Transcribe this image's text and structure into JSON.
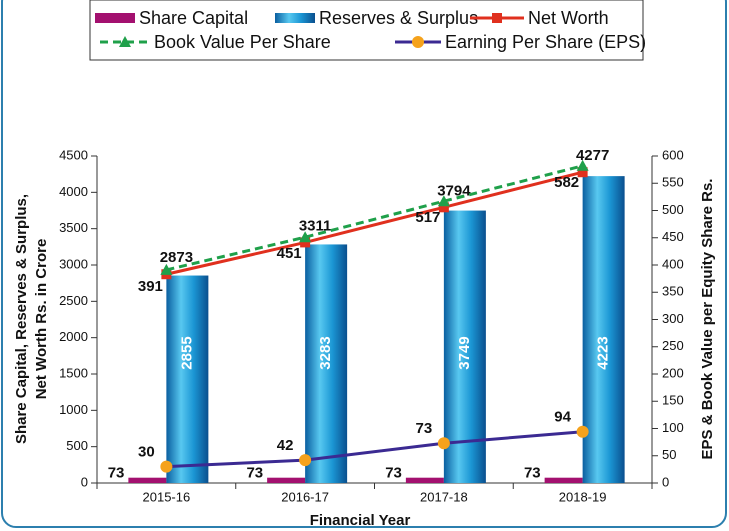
{
  "chart_data": {
    "type": "bar",
    "ylabel": [
      "Share Capital, Reserves & Surplus,",
      "Net Worth  Rs. in Crore"
    ],
    "y2label": "EPS & Book Value per Equity Share Rs.",
    "xlabel": "Financial Year",
    "categories": [
      "2015-16",
      "2016-17",
      "2017-18",
      "2018-19"
    ],
    "ylim": [
      0,
      4500
    ],
    "yticks": [
      0,
      500,
      1000,
      1500,
      2000,
      2500,
      3000,
      3500,
      4000,
      4500
    ],
    "y2lim": [
      0,
      600
    ],
    "y2ticks": [
      0,
      50,
      100,
      150,
      200,
      250,
      300,
      350,
      400,
      450,
      500,
      550,
      600
    ],
    "series": [
      {
        "name": "Share Capital",
        "chart_type": "bar",
        "color": "#a3106f",
        "values": [
          73,
          73,
          73,
          73
        ]
      },
      {
        "name": "Reserves & Surplus",
        "chart_type": "bar",
        "color": "#1a8fd0",
        "values": [
          2855,
          3283,
          3749,
          4223
        ]
      },
      {
        "name": "Net Worth",
        "chart_type": "line",
        "color": "#e0301e",
        "marker": "square",
        "values": [
          2873,
          3311,
          3794,
          4277
        ]
      },
      {
        "name": "Book Value Per Share",
        "chart_type": "line",
        "axis": "y2",
        "color": "#1fa04a",
        "marker": "triangle",
        "dashed": true,
        "values": [
          391,
          451,
          517,
          582
        ]
      },
      {
        "name": "Earning Per Share (EPS)",
        "chart_type": "line",
        "axis": "y2",
        "color": "#3b2a92",
        "marker_color": "#f5a21c",
        "marker": "circle",
        "values": [
          30,
          42,
          73,
          94
        ]
      }
    ]
  }
}
